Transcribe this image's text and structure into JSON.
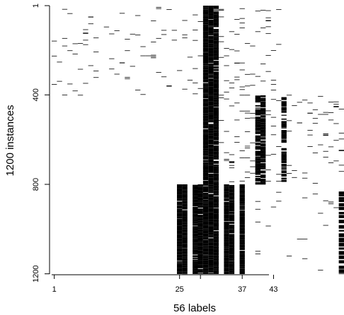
{
  "chart_data": {
    "type": "heatmap",
    "title": "",
    "xlabel": "56 labels",
    "ylabel": "1200 instances",
    "x_range": [
      1,
      56
    ],
    "y_range": [
      1,
      1200
    ],
    "y_reversed": true,
    "x_ticks": [
      {
        "value": 1,
        "label": "1"
      },
      {
        "value": 25,
        "label": "25"
      },
      {
        "value": 29,
        "label": ""
      },
      {
        "value": 37,
        "label": "37"
      },
      {
        "value": 43,
        "label": "43"
      }
    ],
    "y_ticks": [
      {
        "value": 1,
        "label": "1"
      },
      {
        "value": 400,
        "label": "400"
      },
      {
        "value": 800,
        "label": "800"
      },
      {
        "value": 1200,
        "label": "1200"
      }
    ],
    "fill_color": "#000000",
    "background_color": "#ffffff",
    "blocks": [
      {
        "columns": [
          30,
          32
        ],
        "rows": [
          1,
          1200
        ],
        "density": 0.88
      },
      {
        "columns": [
          25,
          26
        ],
        "rows": [
          800,
          1200
        ],
        "density": 0.9
      },
      {
        "columns": [
          28,
          29
        ],
        "rows": [
          800,
          1200
        ],
        "density": 0.86
      },
      {
        "columns": [
          34,
          35
        ],
        "rows": [
          800,
          1200
        ],
        "density": 0.88
      },
      {
        "columns": [
          37,
          37
        ],
        "rows": [
          800,
          1200
        ],
        "density": 0.8
      },
      {
        "columns": [
          40,
          41
        ],
        "rows": [
          400,
          800
        ],
        "density": 0.55
      },
      {
        "columns": [
          45,
          45
        ],
        "rows": [
          400,
          800
        ],
        "density": 0.3
      },
      {
        "columns": [
          56,
          56
        ],
        "rows": [
          830,
          1200
        ],
        "density": 0.35
      }
    ],
    "scatter": [
      {
        "columns": [
          1,
          29
        ],
        "rows": [
          1,
          400
        ],
        "density": 0.03
      },
      {
        "columns": [
          33,
          44
        ],
        "rows": [
          1,
          400
        ],
        "density": 0.05
      },
      {
        "columns": [
          33,
          56
        ],
        "rows": [
          400,
          800
        ],
        "density": 0.05
      },
      {
        "columns": [
          38,
          56
        ],
        "rows": [
          800,
          1200
        ],
        "density": 0.012
      }
    ]
  }
}
